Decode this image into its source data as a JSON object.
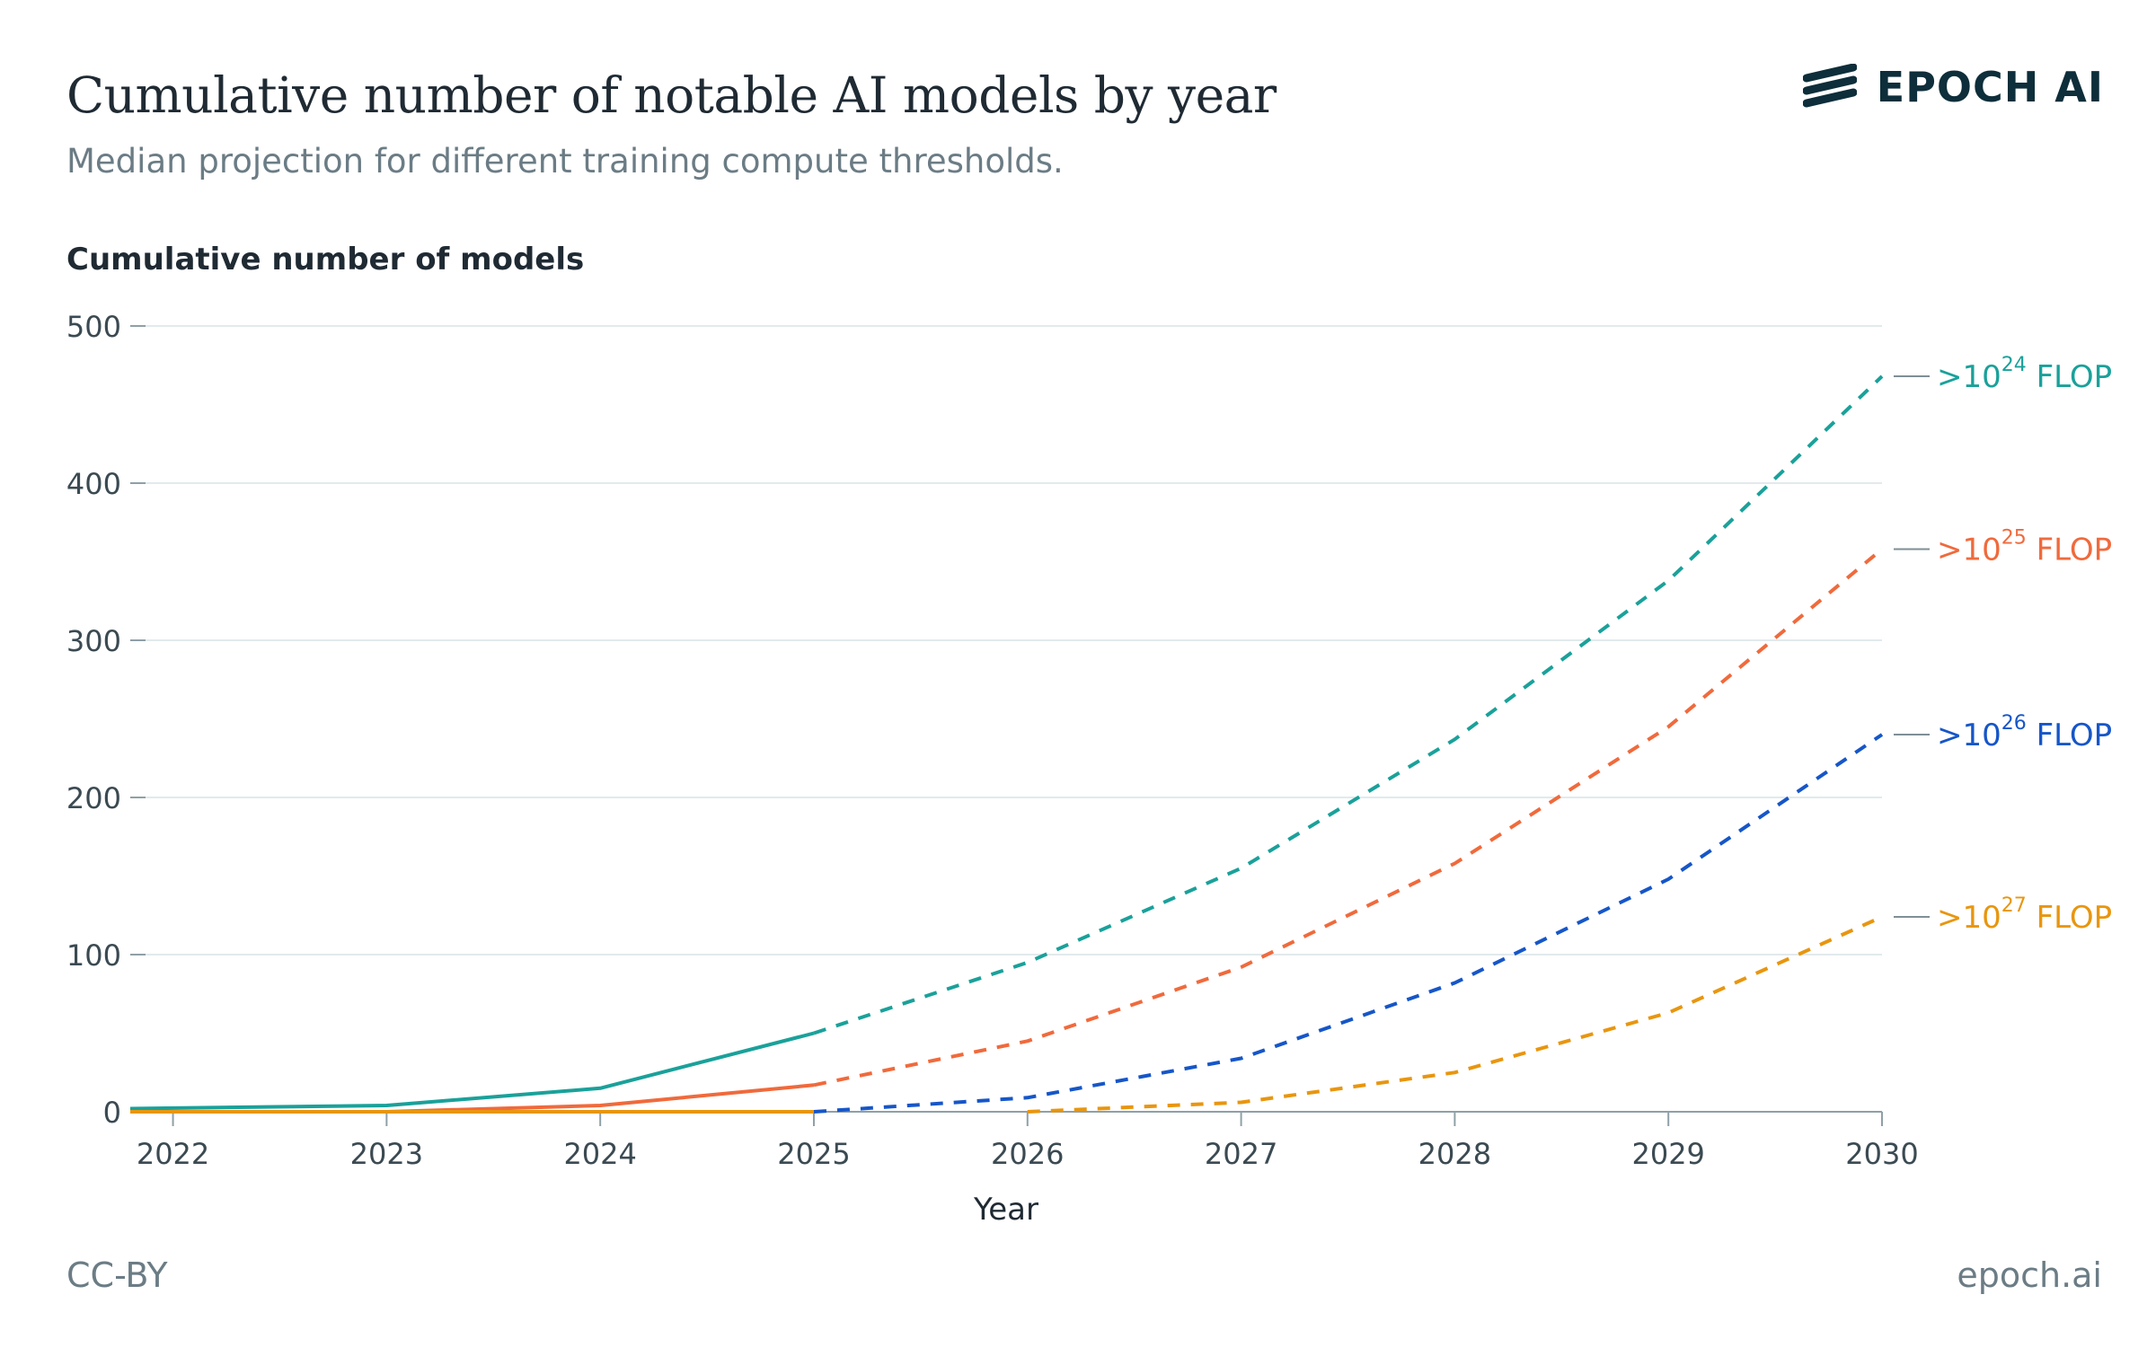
{
  "header": {
    "title": "Cumulative number of notable AI models by year",
    "subtitle": "Median projection for different training compute thresholds."
  },
  "brand": {
    "logo_text": "EPOCH AI",
    "logo_icon": "epoch-stripes-icon"
  },
  "footer": {
    "license": "CC-BY",
    "site": "epoch.ai"
  },
  "chart_data": {
    "type": "line",
    "ylabel": "Cumulative number of models",
    "xlabel": "Year",
    "xlim": [
      2021.8,
      2030
    ],
    "ylim": [
      0,
      500
    ],
    "x_ticks": [
      2022,
      2023,
      2024,
      2025,
      2026,
      2027,
      2028,
      2029,
      2030
    ],
    "y_ticks": [
      0,
      100,
      200,
      300,
      400,
      500
    ],
    "grid": "horizontal",
    "legend_placement": "right-end-labels",
    "series": [
      {
        "name": ">10^24 FLOP",
        "label_base": ">10",
        "label_exp": "24",
        "label_unit": "FLOP",
        "color": "#1aa19a",
        "historical": {
          "x": [
            2021.8,
            2023,
            2024,
            2025
          ],
          "y": [
            2,
            4,
            15,
            50
          ]
        },
        "projection": {
          "x": [
            2025,
            2026,
            2027,
            2028,
            2029,
            2030
          ],
          "y": [
            50,
            95,
            155,
            237,
            338,
            468
          ]
        }
      },
      {
        "name": ">10^25 FLOP",
        "label_base": ">10",
        "label_exp": "25",
        "label_unit": "FLOP",
        "color": "#f06a3c",
        "historical": {
          "x": [
            2021.8,
            2023,
            2024,
            2025
          ],
          "y": [
            0,
            0,
            4,
            17
          ]
        },
        "projection": {
          "x": [
            2025,
            2026,
            2027,
            2028,
            2029,
            2030
          ],
          "y": [
            17,
            45,
            92,
            158,
            245,
            358
          ]
        }
      },
      {
        "name": ">10^26 FLOP",
        "label_base": ">10",
        "label_exp": "26",
        "label_unit": "FLOP",
        "color": "#1656c8",
        "historical": {
          "x": [
            2021.8,
            2023,
            2024,
            2025
          ],
          "y": [
            0,
            0,
            0,
            0
          ]
        },
        "projection": {
          "x": [
            2025,
            2026,
            2027,
            2028,
            2029,
            2030
          ],
          "y": [
            0,
            9,
            34,
            82,
            148,
            240
          ]
        }
      },
      {
        "name": ">10^27 FLOP",
        "label_base": ">10",
        "label_exp": "27",
        "label_unit": "FLOP",
        "color": "#e8960f",
        "historical": {
          "x": [
            2021.8,
            2023,
            2024,
            2025
          ],
          "y": [
            0,
            0,
            0,
            0
          ]
        },
        "projection": {
          "x": [
            2026,
            2027,
            2028,
            2029,
            2030
          ],
          "y": [
            0,
            6,
            25,
            63,
            124
          ]
        }
      }
    ]
  }
}
